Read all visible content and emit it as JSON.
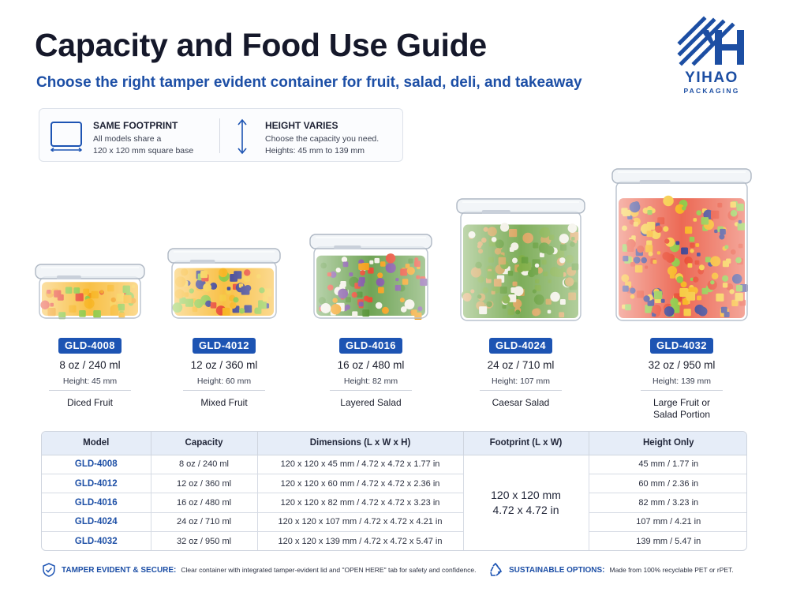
{
  "header": {
    "title": "Capacity and Food Use Guide",
    "subtitle": "Choose the right tamper evident container for fruit, salad, deli, and takeaway"
  },
  "brand": {
    "name": "YIHAO",
    "tagline": "PACKAGING",
    "color": "#1c4ea3"
  },
  "info": {
    "footprint": {
      "title": "SAME FOOTPRINT",
      "line1": "All models share a",
      "line2": "120 x 120 mm square base"
    },
    "height": {
      "title": "HEIGHT VARIES",
      "line1": "Choose the capacity you need.",
      "line2": "Heights: 45 mm to 139 mm"
    }
  },
  "products": [
    {
      "model": "GLD-4008",
      "capacity": "8 oz / 240 ml",
      "height": "Height: 45 mm",
      "use1": "Diced Fruit",
      "use2": "",
      "contents": "diced-fruit"
    },
    {
      "model": "GLD-4012",
      "capacity": "12 oz / 360 ml",
      "height": "Height: 60 mm",
      "use1": "Mixed Fruit",
      "use2": "",
      "contents": "mixed-fruit"
    },
    {
      "model": "GLD-4016",
      "capacity": "16 oz / 480 ml",
      "height": "Height: 82 mm",
      "use1": "Layered Salad",
      "use2": "",
      "contents": "layered-salad"
    },
    {
      "model": "GLD-4024",
      "capacity": "24 oz / 710 ml",
      "height": "Height: 107 mm",
      "use1": "Caesar Salad",
      "use2": "",
      "contents": "caesar-salad"
    },
    {
      "model": "GLD-4032",
      "capacity": "32 oz / 950 ml",
      "height": "Height: 139 mm",
      "use1": "Large Fruit or",
      "use2": "Salad Portion",
      "contents": "fruit-salad-portion"
    }
  ],
  "table": {
    "headers": [
      "Model",
      "Capacity",
      "Dimensions (L x W x H)",
      "Footprint (L x W)",
      "Height Only"
    ],
    "rows": [
      [
        "GLD-4008",
        "8 oz / 240 ml",
        "120 x 120 x 45 mm / 4.72 x 4.72 x 1.77 in",
        "45 mm / 1.77 in"
      ],
      [
        "GLD-4012",
        "12 oz / 360 ml",
        "120 x 120 x 60 mm / 4.72 x 4.72 x 2.36 in",
        "60 mm / 2.36 in"
      ],
      [
        "GLD-4016",
        "16 oz / 480 ml",
        "120 x 120 x 82 mm / 4.72 x 4.72 x 3.23 in",
        "82 mm / 3.23 in"
      ],
      [
        "GLD-4024",
        "24 oz / 710 ml",
        "120 x 120 x 107 mm / 4.72 x 4.72 x 4.21 in",
        "107 mm / 4.21 in"
      ],
      [
        "GLD-4032",
        "32 oz / 950 ml",
        "120 x 120 x 139 mm / 4.72 x 4.72 x 5.47 in",
        "139 mm / 5.47 in"
      ]
    ],
    "footprint_line1": "120 x 120 mm",
    "footprint_line2": "4.72 x 4.72 in"
  },
  "footer": {
    "tamper": {
      "title": "TAMPER EVIDENT & SECURE:",
      "text": "Clear container with integrated tamper-evident lid and \"OPEN HERE\" tab for safety and confidence.",
      "icon": "shield-check-icon"
    },
    "sustainable": {
      "title": "SUSTAINABLE OPTIONS:",
      "text": "Made from 100% recyclable PET or rPET.",
      "icon": "recycle-icon"
    }
  },
  "colors": {
    "accent": "#1d54b3",
    "table_header": "#e6edf8"
  }
}
